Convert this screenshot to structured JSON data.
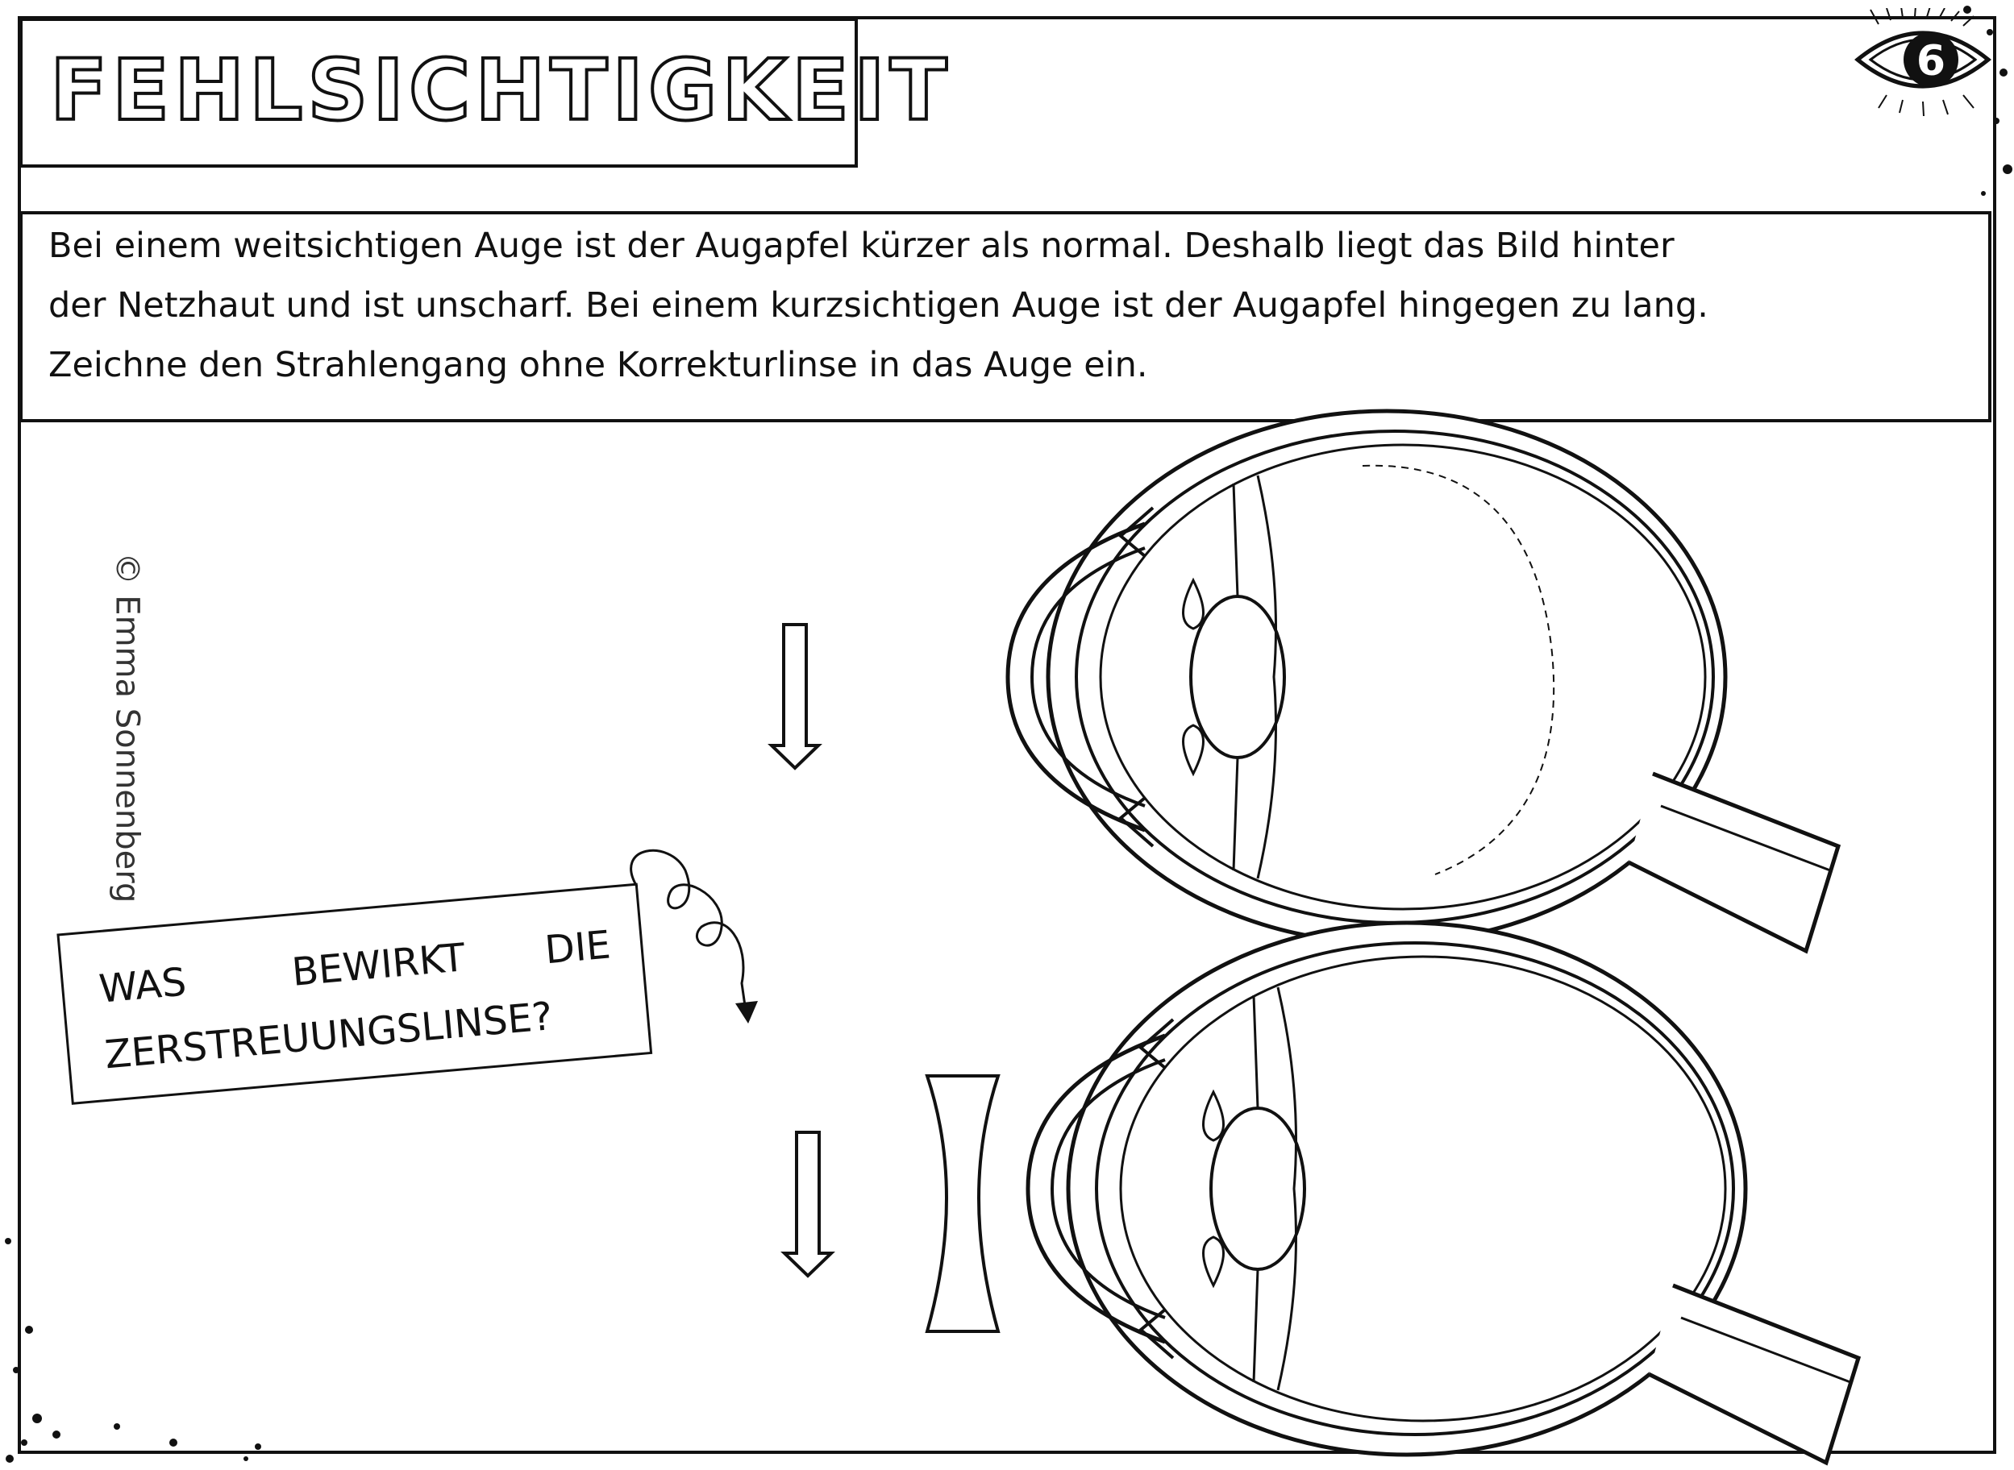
{
  "worksheet": {
    "title": "FEHLSICHTIGKEIT",
    "page_number": "6",
    "copyright": "© Emma Sonnenberg",
    "task_lines": [
      "Bei einem weitsichtigen Auge ist der Augapfel kürzer als normal. Deshalb liegt das Bild hinter",
      "der Netzhaut und ist unscharf. Bei einem kurzsichtigen Auge ist der Augapfel hingegen zu lang.",
      "Zeichne den Strahlengang ohne Korrekturlinse in das Auge ein."
    ],
    "question": {
      "line1_words": [
        "WAS",
        "BEWIRKT",
        "DIE"
      ],
      "line2": "ZERSTREUUNGSLINSE?"
    },
    "icons": {
      "badge": "eye-badge-icon",
      "arrows": "down-arrow-icon",
      "lens": "concave-lens-icon",
      "eyes": "eyeball-cross-section-icon"
    },
    "colors": {
      "ink": "#111111",
      "paper": "#ffffff"
    }
  }
}
